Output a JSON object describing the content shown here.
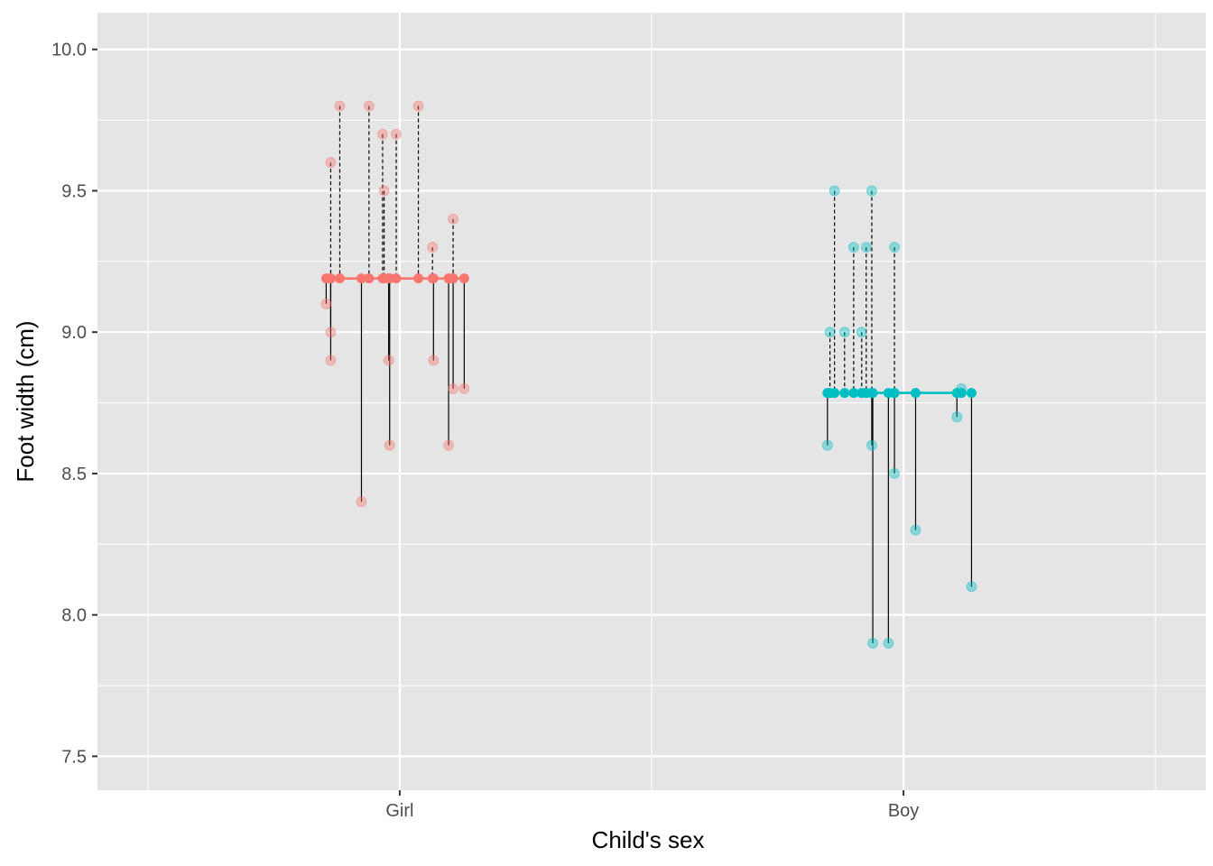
{
  "chart_data": {
    "type": "scatter",
    "title": "",
    "xlabel": "Child's sex",
    "ylabel": "Foot width (cm)",
    "categories": [
      "Girl",
      "Boy"
    ],
    "ylim": [
      7.38,
      10.13
    ],
    "y_ticks": [
      7.5,
      8.0,
      8.5,
      9.0,
      9.5,
      10.0
    ],
    "y_tick_labels": [
      "7.5",
      "8.0",
      "8.5",
      "9.0",
      "9.5",
      "10.0"
    ],
    "grid": true,
    "legend": "none",
    "colors": {
      "Girl": "#F8766D",
      "Boy": "#00BFC4",
      "panel": "#E5E5E5",
      "grid": "#FFFFFF",
      "residual": "#000000"
    },
    "series": [
      {
        "category": "Girl",
        "mean": 9.19,
        "points": [
          {
            "offset": -0.146,
            "value": 9.1
          },
          {
            "offset": -0.137,
            "value": 9.6
          },
          {
            "offset": -0.137,
            "value": 9.0
          },
          {
            "offset": -0.137,
            "value": 8.9
          },
          {
            "offset": -0.119,
            "value": 9.8
          },
          {
            "offset": -0.076,
            "value": 8.4
          },
          {
            "offset": -0.061,
            "value": 9.8
          },
          {
            "offset": -0.034,
            "value": 9.7
          },
          {
            "offset": -0.031,
            "value": 9.5
          },
          {
            "offset": -0.022,
            "value": 8.9
          },
          {
            "offset": -0.02,
            "value": 8.6
          },
          {
            "offset": -0.007,
            "value": 9.7
          },
          {
            "offset": 0.037,
            "value": 9.8
          },
          {
            "offset": 0.065,
            "value": 9.3
          },
          {
            "offset": 0.067,
            "value": 8.9
          },
          {
            "offset": 0.097,
            "value": 8.6
          },
          {
            "offset": 0.106,
            "value": 9.4
          },
          {
            "offset": 0.106,
            "value": 8.8
          },
          {
            "offset": 0.128,
            "value": 8.8
          }
        ]
      },
      {
        "category": "Boy",
        "mean": 8.785,
        "points": [
          {
            "offset": -0.151,
            "value": 8.6
          },
          {
            "offset": -0.146,
            "value": 9.0
          },
          {
            "offset": -0.137,
            "value": 9.5
          },
          {
            "offset": -0.117,
            "value": 9.0
          },
          {
            "offset": -0.099,
            "value": 9.3
          },
          {
            "offset": -0.083,
            "value": 9.0
          },
          {
            "offset": -0.074,
            "value": 9.3
          },
          {
            "offset": -0.063,
            "value": 9.5
          },
          {
            "offset": -0.063,
            "value": 8.6
          },
          {
            "offset": -0.061,
            "value": 7.9
          },
          {
            "offset": -0.03,
            "value": 7.9
          },
          {
            "offset": -0.018,
            "value": 9.3
          },
          {
            "offset": -0.018,
            "value": 8.5
          },
          {
            "offset": 0.024,
            "value": 8.3
          },
          {
            "offset": 0.106,
            "value": 8.7
          },
          {
            "offset": 0.115,
            "value": 8.8
          },
          {
            "offset": 0.135,
            "value": 8.1
          }
        ]
      }
    ]
  }
}
